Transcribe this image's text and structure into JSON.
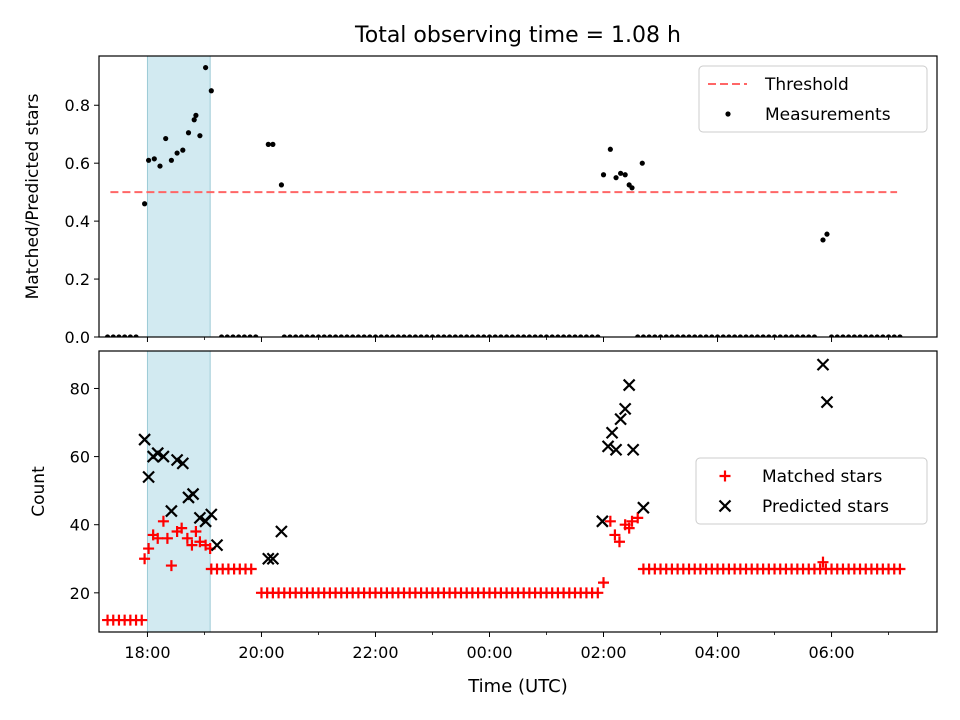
{
  "chart_data": [
    {
      "type": "scatter",
      "title": "Total observing time = 1.08 h",
      "xlabel": "",
      "ylabel": "Matched/Predicted stars",
      "ylim": [
        0,
        0.97
      ],
      "yticks": [
        "0.0",
        "0.2",
        "0.4",
        "0.6",
        "0.8"
      ],
      "x_unit": "hours since 00:00 UTC",
      "xlim": [
        -6.85,
        7.85
      ],
      "xticks": [
        "18:00",
        "20:00",
        "22:00",
        "00:00",
        "02:00",
        "04:00",
        "06:00"
      ],
      "grid": false,
      "legend_position": "top-right",
      "shaded_span": {
        "from": -6.0,
        "to": -4.9,
        "color": "#add8e6"
      },
      "threshold": {
        "name": "Threshold",
        "y": 0.5,
        "from": -6.65,
        "to": 7.15,
        "color": "#ff6666"
      },
      "series": [
        {
          "name": "Measurements",
          "marker": "dot",
          "color": "#000000",
          "x": [
            -6.05,
            -5.98,
            -5.88,
            -5.78,
            -5.68,
            -5.58,
            -5.48,
            -5.38,
            -5.28,
            -5.18,
            -5.08,
            -4.98,
            -4.88,
            -3.88,
            -3.8,
            -3.65,
            -5.15,
            2.0,
            2.12,
            2.22,
            2.3,
            2.38,
            2.45,
            2.5,
            2.68,
            5.85,
            5.92
          ],
          "y": [
            0.46,
            0.61,
            0.615,
            0.59,
            0.685,
            0.61,
            0.635,
            0.645,
            0.705,
            0.75,
            0.695,
            0.93,
            0.85,
            0.665,
            0.665,
            0.525,
            0.765,
            0.56,
            0.648,
            0.55,
            0.565,
            0.56,
            0.525,
            0.515,
            0.6,
            0.335,
            0.355
          ]
        },
        {
          "name": "",
          "marker": "dot",
          "color": "#000000",
          "baseline_zero_ranges": [
            [
              -6.7,
              -6.2,
              0.1
            ],
            [
              -4.7,
              -4.1,
              0.1
            ],
            [
              -3.6,
              1.9,
              0.1
            ],
            [
              2.6,
              5.7,
              0.1
            ],
            [
              6.0,
              7.2,
              0.1
            ]
          ],
          "y": 0
        }
      ]
    },
    {
      "type": "scatter",
      "title": "",
      "xlabel": "Time (UTC)",
      "ylabel": "Count",
      "ylim": [
        8.5,
        91
      ],
      "yticks": [
        "20",
        "40",
        "60",
        "80"
      ],
      "x_unit": "hours since 00:00 UTC",
      "xlim": [
        -6.85,
        7.85
      ],
      "xticks": [
        "18:00",
        "20:00",
        "22:00",
        "00:00",
        "02:00",
        "04:00",
        "06:00"
      ],
      "grid": false,
      "legend_position": "center-right",
      "shaded_span": {
        "from": -6.0,
        "to": -4.9,
        "color": "#add8e6"
      },
      "series": [
        {
          "name": "Matched stars",
          "marker": "plus",
          "color": "#ff0000",
          "x": [
            -6.05,
            -5.98,
            -5.9,
            -5.82,
            -5.72,
            -5.65,
            -5.58,
            -5.48,
            -5.4,
            -5.3,
            -5.22,
            -5.15,
            -5.08,
            -4.98,
            -4.9,
            2.0,
            2.12,
            2.2,
            2.28,
            2.38,
            2.45,
            2.5,
            2.6,
            5.85
          ],
          "y": [
            30,
            33,
            37,
            36,
            41,
            36,
            28,
            38,
            39,
            36,
            34,
            38,
            35,
            34,
            33,
            23,
            41,
            37,
            35,
            40,
            39,
            41,
            42,
            29
          ],
          "flat_runs": [
            [
              -6.7,
              -6.1,
              0.1,
              12
            ],
            [
              -4.88,
              -4.1,
              0.1,
              27
            ],
            [
              -4.0,
              1.9,
              0.1,
              20
            ],
            [
              2.7,
              7.2,
              0.1,
              27
            ]
          ]
        },
        {
          "name": "Predicted stars",
          "marker": "x",
          "color": "#000000",
          "x": [
            -6.05,
            -5.98,
            -5.9,
            -5.82,
            -5.72,
            -5.58,
            -5.48,
            -5.38,
            -5.28,
            -5.2,
            -5.08,
            -4.98,
            -4.88,
            -4.78,
            -3.88,
            -3.8,
            -3.65,
            1.98,
            2.08,
            2.15,
            2.22,
            2.3,
            2.38,
            2.45,
            2.52,
            2.7,
            5.85,
            5.92
          ],
          "y": [
            65,
            54,
            60,
            61,
            60,
            44,
            59,
            58,
            48,
            49,
            42,
            41,
            43,
            34,
            30,
            30,
            38,
            41,
            63,
            67,
            62,
            71,
            74,
            81,
            62,
            45,
            87,
            76
          ]
        }
      ]
    }
  ]
}
